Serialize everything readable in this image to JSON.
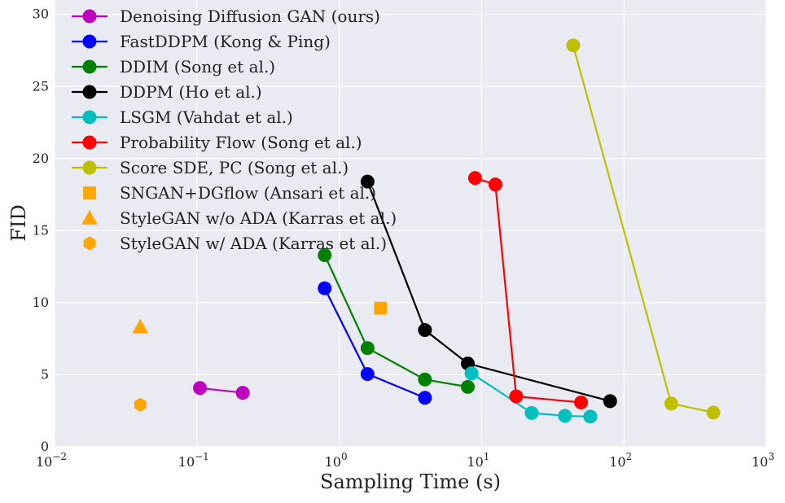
{
  "chart_data": {
    "type": "line",
    "title": "",
    "xlabel": "Sampling Time (s)",
    "ylabel": "FID",
    "xscale": "log",
    "xlim": [
      0.01,
      1000
    ],
    "ylim": [
      0,
      31
    ],
    "grid": true,
    "legend_position": "top-left",
    "x_ticks": [
      {
        "value": 0.01,
        "base": "10",
        "exp": "−2"
      },
      {
        "value": 0.1,
        "base": "10",
        "exp": "−1"
      },
      {
        "value": 1,
        "base": "10",
        "exp": "0"
      },
      {
        "value": 10,
        "base": "10",
        "exp": "1"
      },
      {
        "value": 100,
        "base": "10",
        "exp": "2"
      },
      {
        "value": 1000,
        "base": "10",
        "exp": "3"
      }
    ],
    "y_ticks": [
      0,
      5,
      10,
      15,
      20,
      25,
      30
    ],
    "series": [
      {
        "name": "Denoising Diffusion GAN (ours)",
        "color": "#bf00bf",
        "marker": "circle",
        "line": true,
        "points": [
          [
            0.105,
            4.08
          ],
          [
            0.21,
            3.75
          ]
        ]
      },
      {
        "name": "FastDDPM (Kong & Ping)",
        "color": "#0000ff",
        "marker": "circle",
        "line": true,
        "points": [
          [
            0.79,
            11.0
          ],
          [
            1.58,
            5.05
          ],
          [
            4.0,
            3.4
          ]
        ]
      },
      {
        "name": "DDIM (Song et al.)",
        "color": "#008000",
        "marker": "circle",
        "line": true,
        "points": [
          [
            0.79,
            13.3
          ],
          [
            1.58,
            6.85
          ],
          [
            4.0,
            4.67
          ],
          [
            8.0,
            4.16
          ]
        ]
      },
      {
        "name": "DDPM (Ho et al.)",
        "color": "#000000",
        "marker": "circle",
        "line": true,
        "points": [
          [
            1.58,
            18.4
          ],
          [
            4.0,
            8.1
          ],
          [
            8.0,
            5.78
          ],
          [
            80.0,
            3.17
          ]
        ]
      },
      {
        "name": "LSGM (Vahdat et al.)",
        "color": "#00bfbf",
        "marker": "circle",
        "line": true,
        "points": [
          [
            8.5,
            5.1
          ],
          [
            22.5,
            2.35
          ],
          [
            38.5,
            2.15
          ],
          [
            58.0,
            2.1
          ]
        ]
      },
      {
        "name": "Probability Flow (Song et al.)",
        "color": "#ff0000",
        "marker": "circle",
        "line": true,
        "points": [
          [
            9.0,
            18.65
          ],
          [
            12.5,
            18.2
          ],
          [
            17.5,
            3.5
          ],
          [
            50.0,
            3.08
          ]
        ]
      },
      {
        "name": "Score SDE, PC (Song et al.)",
        "color": "#bfbf00",
        "marker": "circle",
        "line": true,
        "points": [
          [
            44.0,
            27.85
          ],
          [
            215.0,
            3.0
          ],
          [
            425.0,
            2.38
          ]
        ]
      },
      {
        "name": "SNGAN+DGflow (Ansari et al.)",
        "color": "#ffa500",
        "marker": "square",
        "line": false,
        "points": [
          [
            1.95,
            9.62
          ]
        ]
      },
      {
        "name": "StyleGAN w/o ADA (Karras et al.)",
        "color": "#ffa500",
        "marker": "triangle",
        "line": false,
        "points": [
          [
            0.04,
            8.32
          ]
        ]
      },
      {
        "name": "StyleGAN w/ ADA (Karras et al.)",
        "color": "#ffa500",
        "marker": "hexagon",
        "line": false,
        "points": [
          [
            0.04,
            2.92
          ]
        ]
      }
    ]
  }
}
